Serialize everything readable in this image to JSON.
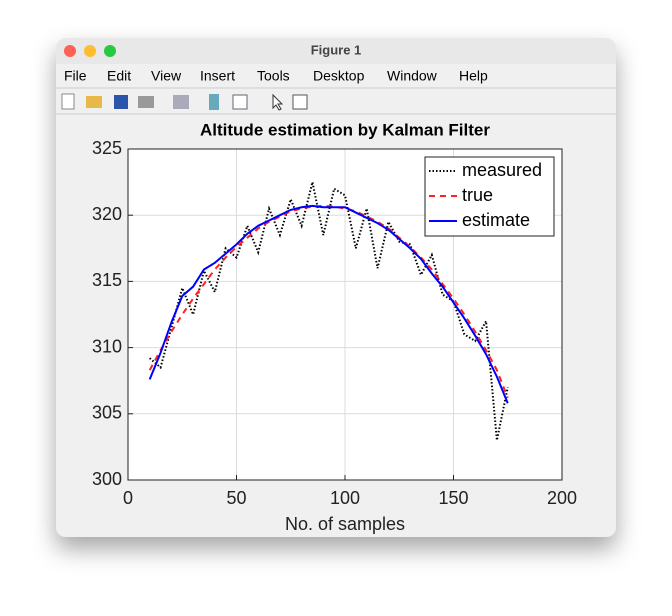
{
  "window": {
    "title": "Figure 1",
    "menu": [
      "File",
      "Edit",
      "View",
      "Insert",
      "Tools",
      "Desktop",
      "Window",
      "Help"
    ]
  },
  "chart_data": {
    "type": "line",
    "title": "Altitude estimation by Kalman Filter",
    "x_label": "No. of samples",
    "x": [
      10,
      15,
      20,
      25,
      30,
      35,
      40,
      45,
      50,
      55,
      60,
      65,
      70,
      75,
      80,
      85,
      90,
      95,
      100,
      105,
      110,
      115,
      120,
      125,
      130,
      135,
      140,
      145,
      150,
      155,
      160,
      165,
      170,
      175
    ],
    "series": [
      {
        "name": "measured",
        "color": "#000000",
        "dash": "1.5 2",
        "values": [
          309.2,
          308.5,
          311.5,
          314.5,
          312.5,
          315.8,
          314.2,
          317.5,
          316.8,
          319.2,
          317.2,
          320.5,
          318.5,
          321.2,
          319.2,
          322.5,
          318.5,
          322.0,
          321.5,
          317.5,
          320.5,
          316.0,
          319.5,
          318.0,
          317.8,
          315.5,
          317.0,
          314.0,
          313.5,
          311.0,
          310.5,
          312.0,
          303.0,
          307.0
        ]
      },
      {
        "name": "true",
        "color": "#ff2020",
        "dash": "6 5",
        "values": [
          308.3,
          309.8,
          311.2,
          312.5,
          313.7,
          314.8,
          315.9,
          316.8,
          317.6,
          318.3,
          319.0,
          319.5,
          319.9,
          320.3,
          320.5,
          320.65,
          320.7,
          320.65,
          320.5,
          320.3,
          319.9,
          319.5,
          319.0,
          318.3,
          317.6,
          316.8,
          315.9,
          314.8,
          313.7,
          312.5,
          311.2,
          309.8,
          308.3,
          306.2
        ]
      },
      {
        "name": "estimate",
        "color": "#0000ff",
        "dash": "",
        "values": [
          307.6,
          309.6,
          311.9,
          313.9,
          314.6,
          315.9,
          316.4,
          317.1,
          317.8,
          318.6,
          319.2,
          319.6,
          320.0,
          320.4,
          320.6,
          320.7,
          320.6,
          320.6,
          320.6,
          320.2,
          319.8,
          319.4,
          318.9,
          318.2,
          317.5,
          316.7,
          315.6,
          314.6,
          313.4,
          312.2,
          310.9,
          309.5,
          307.8,
          305.8
        ]
      }
    ],
    "xlim": [
      0,
      200
    ],
    "xticks": [
      0,
      50,
      100,
      150,
      200
    ],
    "ylim": [
      300,
      325
    ],
    "yticks": [
      300,
      305,
      310,
      315,
      320,
      325
    ],
    "grid": true,
    "legend": "top-right"
  }
}
